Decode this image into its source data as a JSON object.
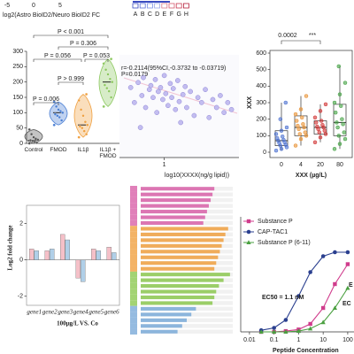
{
  "chart_data": [
    {
      "type": "heatmap-legend",
      "title": "log2(Astro BioID2/Neuro BioID2 FC",
      "xlim": [
        -5,
        5
      ],
      "xticks": [
        -5,
        0,
        5
      ],
      "legend": [
        {
          "name": "A",
          "color": "#3b4cc0"
        },
        {
          "name": "B",
          "color": "#5a6fd8"
        },
        {
          "name": "C",
          "color": "#7a8fe6"
        },
        {
          "name": "D",
          "color": "#9aa6e8"
        },
        {
          "name": "E",
          "color": "#d77a8a"
        },
        {
          "name": "F",
          "color": "#d45a6e"
        },
        {
          "name": "G",
          "color": "#c83a52"
        },
        {
          "name": "H",
          "color": "#b41e3a"
        }
      ]
    },
    {
      "type": "violin",
      "categories": [
        "Control",
        "FMOD",
        "IL1β",
        "IL1β + FMOD"
      ],
      "colors": [
        "#555555",
        "#4a7fd4",
        "#f0a040",
        "#8dc860"
      ],
      "values": [
        [
          0,
          2,
          5,
          8,
          10,
          12,
          15,
          20,
          30,
          45
        ],
        [
          60,
          75,
          85,
          90,
          95,
          100,
          105,
          110,
          120,
          135
        ],
        [
          20,
          30,
          40,
          50,
          55,
          60,
          70,
          90,
          110,
          140,
          160
        ],
        [
          120,
          150,
          170,
          180,
          190,
          200,
          210,
          225,
          240,
          260,
          275
        ]
      ],
      "medians": [
        10,
        100,
        60,
        200
      ],
      "ylim": [
        0,
        300
      ],
      "yticks": [
        0,
        50,
        100,
        150,
        200,
        250,
        300
      ],
      "annotations": [
        "P < 0.001",
        "P = 0.306",
        "P = 0.056",
        "P = 0.053",
        "P > 0.999",
        "P = 0.006"
      ]
    },
    {
      "type": "scatter",
      "xlabel": "log10(XXXX(ng/g lipid))",
      "color": "#c3bdf0",
      "annotations": [
        "r=-0.2114(95%CI,-0.3732 to -0.03719)",
        "P=0.0179"
      ],
      "x": [
        0.55,
        0.6,
        0.65,
        0.7,
        0.72,
        0.75,
        0.8,
        0.82,
        0.85,
        0.88,
        0.9,
        0.92,
        0.95,
        0.98,
        1.0,
        1.02,
        1.05,
        1.08,
        1.1,
        1.12,
        1.15,
        1.18,
        1.2,
        1.25,
        1.28,
        1.3,
        1.35,
        1.4,
        1.45,
        1.5,
        1.55,
        1.6,
        1.65,
        1.7,
        1.75,
        1.8,
        1.85,
        1.9,
        0.68,
        1.22
      ],
      "y": [
        0.7,
        0.55,
        0.75,
        0.62,
        0.8,
        0.5,
        0.68,
        0.72,
        0.6,
        0.78,
        0.45,
        0.66,
        0.7,
        0.58,
        0.82,
        0.64,
        0.52,
        0.74,
        0.6,
        0.69,
        0.48,
        0.77,
        0.56,
        0.63,
        0.71,
        0.5,
        0.66,
        0.42,
        0.6,
        0.55,
        0.68,
        0.4,
        0.58,
        0.5,
        0.62,
        0.45,
        0.55,
        0.48,
        0.3,
        0.35
      ],
      "xlim": [
        0.4,
        2.0
      ],
      "ylim": [
        0,
        1
      ],
      "xticks": [
        1
      ]
    },
    {
      "type": "box",
      "categories": [
        "0",
        "4",
        "20",
        "80"
      ],
      "xlabel": "XXX (µg/L)",
      "ylabel": "XXX",
      "colors": [
        "#4a6fd0",
        "#e89030",
        "#d03030",
        "#40a040"
      ],
      "values": [
        [
          10,
          20,
          30,
          40,
          45,
          55,
          60,
          70,
          75,
          85,
          95,
          110,
          130,
          150,
          200,
          300
        ],
        [
          40,
          80,
          100,
          110,
          120,
          140,
          150,
          160,
          170,
          190,
          210,
          230,
          260,
          340
        ],
        [
          60,
          90,
          110,
          120,
          130,
          140,
          150,
          155,
          165,
          180,
          190,
          210,
          250,
          290
        ],
        [
          20,
          50,
          80,
          100,
          120,
          150,
          170,
          180,
          200,
          240,
          280,
          300,
          350,
          420,
          520
        ]
      ],
      "boxes": [
        {
          "low": 10,
          "q1": 40,
          "median": 70,
          "q3": 130,
          "high": 300
        },
        {
          "low": 40,
          "q1": 100,
          "median": 150,
          "q3": 220,
          "high": 340
        },
        {
          "low": 60,
          "q1": 110,
          "median": 150,
          "q3": 190,
          "high": 290
        },
        {
          "low": 20,
          "q1": 100,
          "median": 180,
          "q3": 290,
          "high": 520
        }
      ],
      "ylim": [
        0,
        600
      ],
      "yticks": [
        0,
        100,
        200,
        300,
        400,
        500,
        600
      ],
      "annotations": [
        "0.0002",
        "***"
      ]
    },
    {
      "type": "bar",
      "categories": [
        "gene1",
        "gene2",
        "gene3",
        "gene4",
        "gene5",
        "gene6"
      ],
      "ylabel": "Log2 fold change",
      "xlabel": "100μg/L VS. Co",
      "series": [
        {
          "color": "#f5c0c8",
          "values": [
            0.6,
            0.5,
            1.4,
            -1.0,
            0.6,
            0.7
          ]
        },
        {
          "color": "#b0cfe8",
          "values": [
            0.5,
            0.6,
            1.1,
            -1.2,
            0.5,
            0.4
          ]
        }
      ],
      "ylim": [
        -2.5,
        3
      ],
      "yticks": [
        -2,
        0,
        2
      ]
    },
    {
      "type": "hbar",
      "xlim": [
        0,
        100
      ],
      "series": [
        {
          "color": "#d860a8",
          "values": [
            80,
            78,
            76,
            74,
            72,
            70,
            68
          ]
        },
        {
          "color": "#f0a040",
          "values": [
            95,
            92,
            90,
            88,
            86,
            84,
            82,
            80
          ]
        },
        {
          "color": "#8cc850",
          "values": [
            97,
            90,
            85,
            82,
            80,
            78
          ]
        },
        {
          "color": "#7aaad8",
          "values": [
            60,
            55,
            50,
            45,
            40
          ]
        }
      ]
    },
    {
      "type": "line",
      "log_x": true,
      "xlabel": "Peptide Concentration",
      "x": [
        0.03,
        0.1,
        0.3,
        1,
        3,
        10,
        30,
        100
      ],
      "series": [
        {
          "name": "Substance P",
          "color": "#d03c8c",
          "marker": "square",
          "values": [
            0,
            0,
            1,
            3,
            10,
            30,
            60,
            85
          ]
        },
        {
          "name": "CAP-TAC1",
          "color": "#2a3f8f",
          "marker": "circle",
          "values": [
            2,
            5,
            15,
            45,
            75,
            95,
            100,
            100
          ]
        },
        {
          "name": "Substance P (6-11)",
          "color": "#4aa040",
          "marker": "triangle",
          "values": [
            0,
            0,
            0,
            1,
            4,
            12,
            30,
            55
          ]
        }
      ],
      "xlim": [
        0.0044,
        180
      ],
      "ylim": [
        0,
        150
      ],
      "xticks": [
        0.01,
        0.1,
        1,
        10,
        100
      ],
      "annotations": [
        {
          "text": "EC50 = 1.1 nM",
          "color": "#1f4fb0"
        },
        {
          "text": "E",
          "color": "#d03c8c"
        },
        {
          "text": "EC",
          "color": "#4aa040"
        }
      ]
    }
  ]
}
